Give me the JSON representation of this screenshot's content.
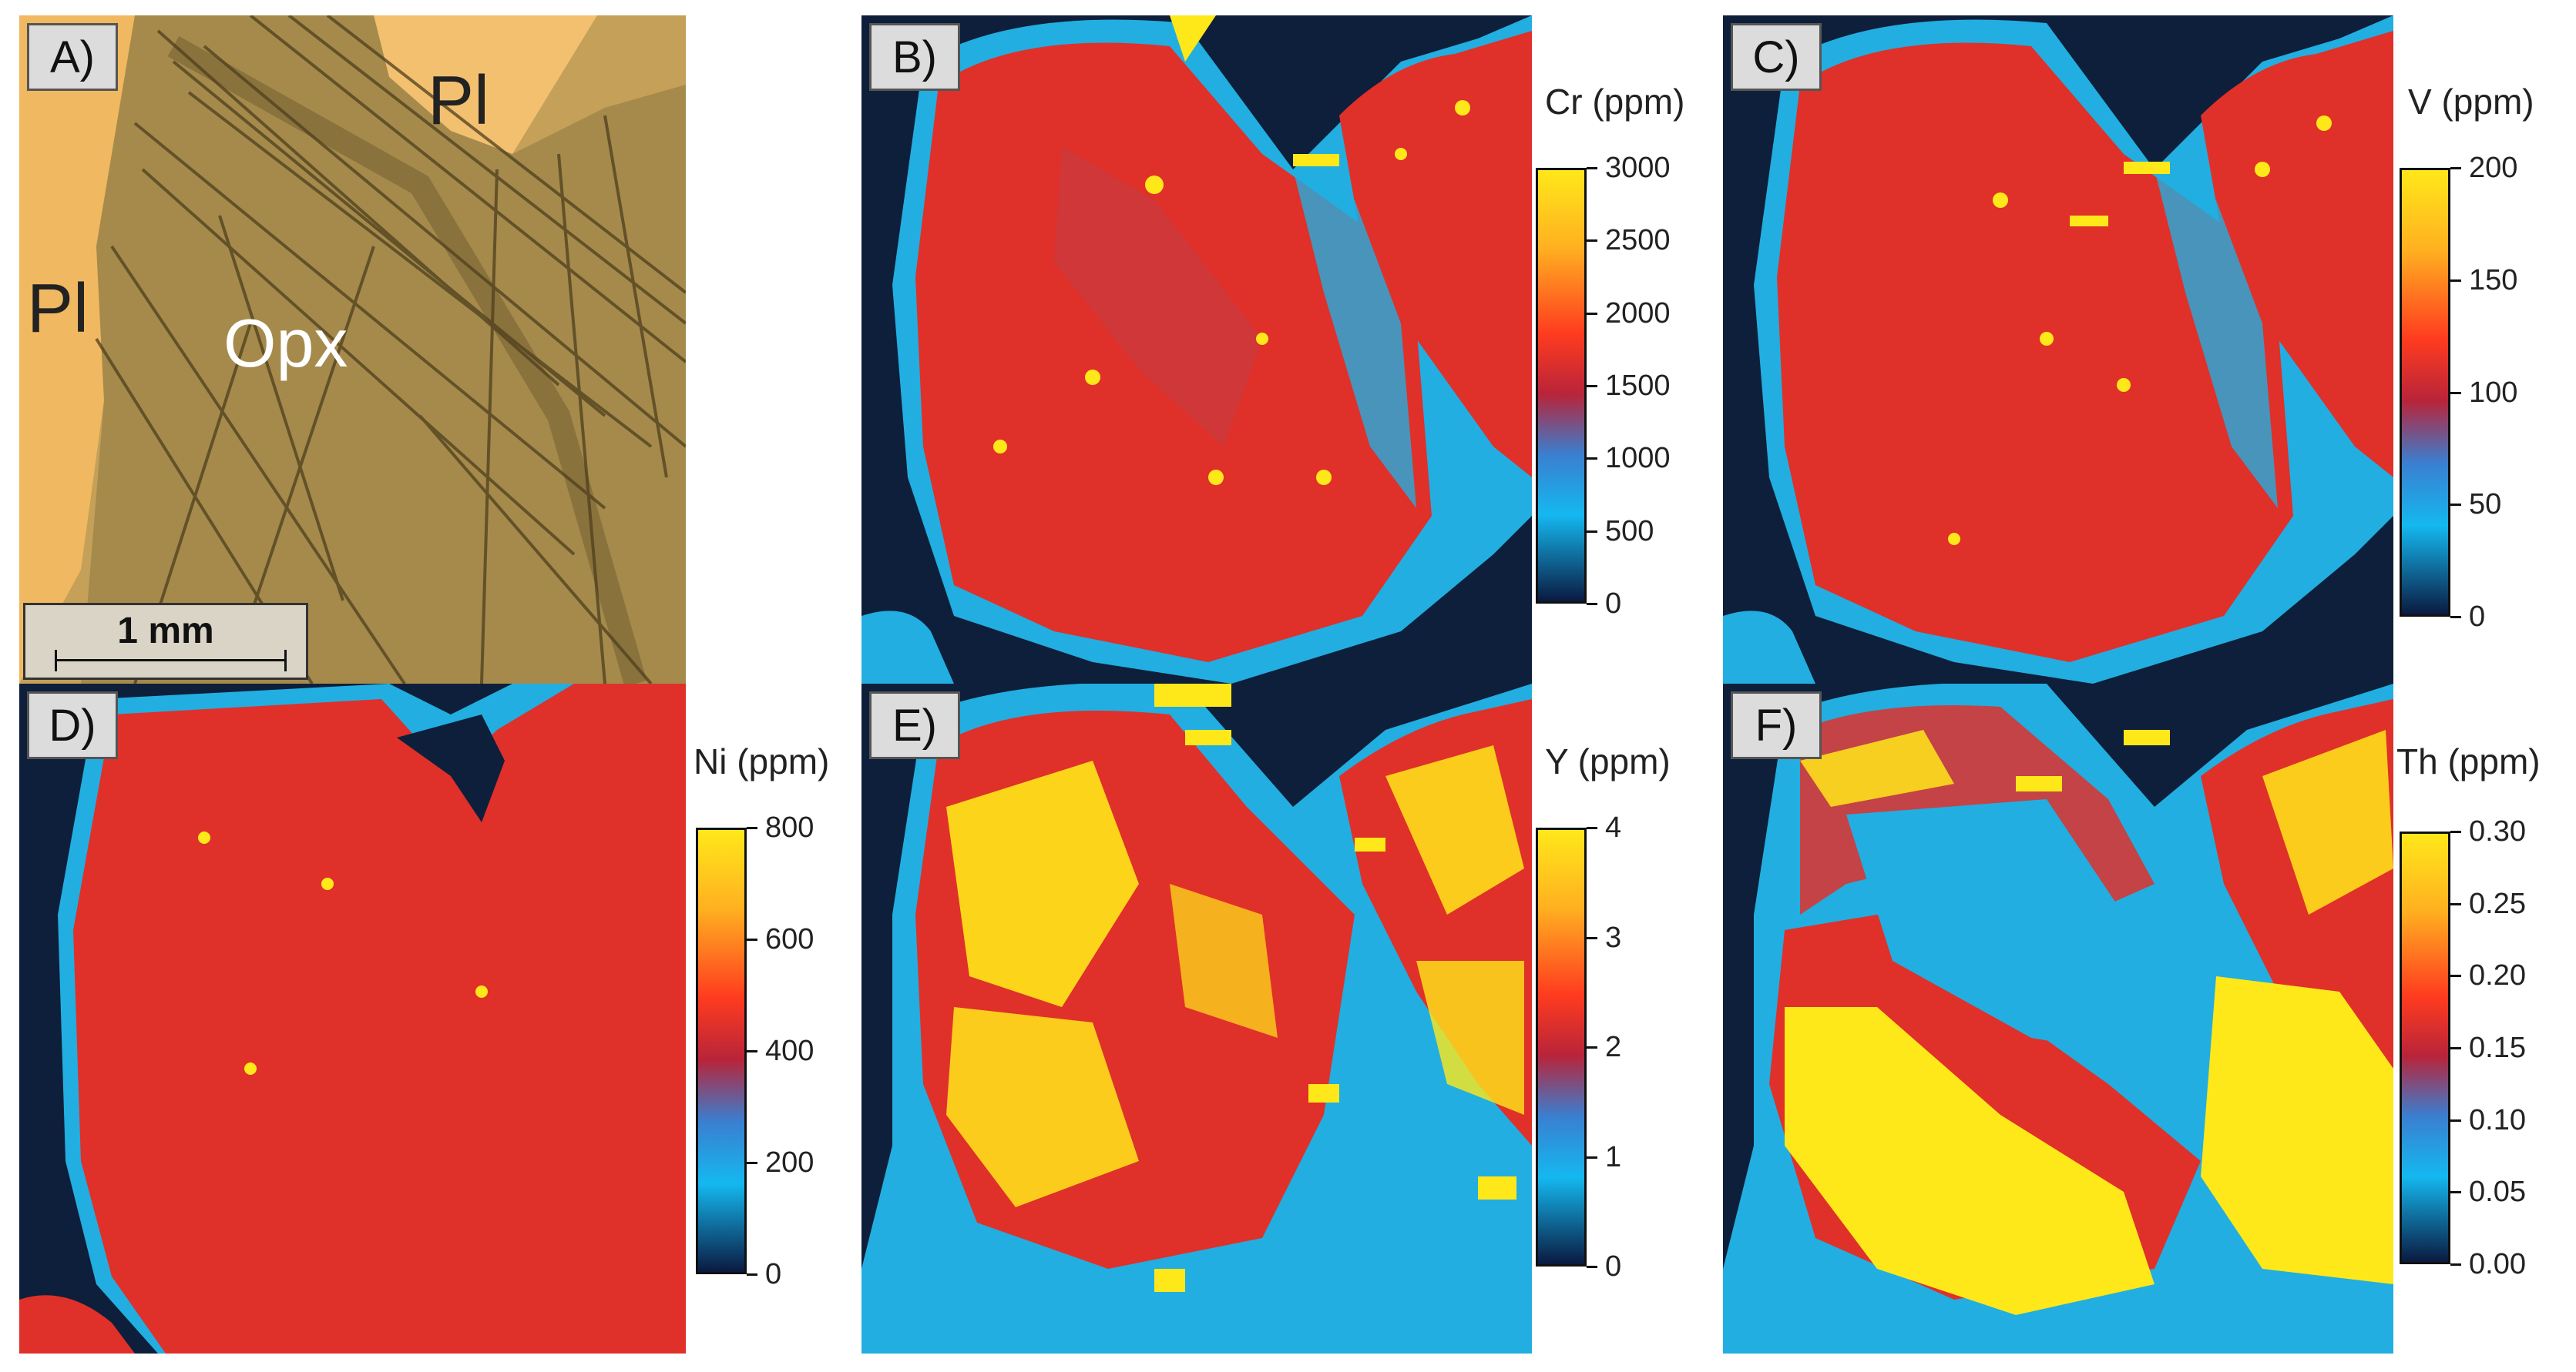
{
  "figure": {
    "panel_a": {
      "label": "A)",
      "mineral_labels": [
        "Pl",
        "Pl",
        "Opx"
      ],
      "scale_bar": "1 mm"
    },
    "maps": [
      {
        "id": "b",
        "label": "B)",
        "title": "Cr (ppm)",
        "ticks": [
          "3000",
          "2500",
          "2000",
          "1500",
          "1000",
          "500",
          "0"
        ]
      },
      {
        "id": "c",
        "label": "C)",
        "title": "V (ppm)",
        "ticks": [
          "200",
          "150",
          "100",
          "50",
          "0"
        ]
      },
      {
        "id": "d",
        "label": "D)",
        "title": "Ni (ppm)",
        "ticks": [
          "800",
          "600",
          "400",
          "200",
          "0"
        ]
      },
      {
        "id": "e",
        "label": "E)",
        "title": "Y (ppm)",
        "ticks": [
          "4",
          "3",
          "2",
          "1",
          "0"
        ]
      },
      {
        "id": "f",
        "label": "F)",
        "title": "Th (ppm)",
        "ticks": [
          "0.30",
          "0.25",
          "0.20",
          "0.15",
          "0.10",
          "0.05",
          "0.00"
        ]
      }
    ],
    "colors": {
      "background": "#0d1f3a",
      "rim": "#22aee0",
      "red": "#e0302a",
      "yellow": "#ffe81a",
      "thin_section": "#c9a156"
    }
  }
}
